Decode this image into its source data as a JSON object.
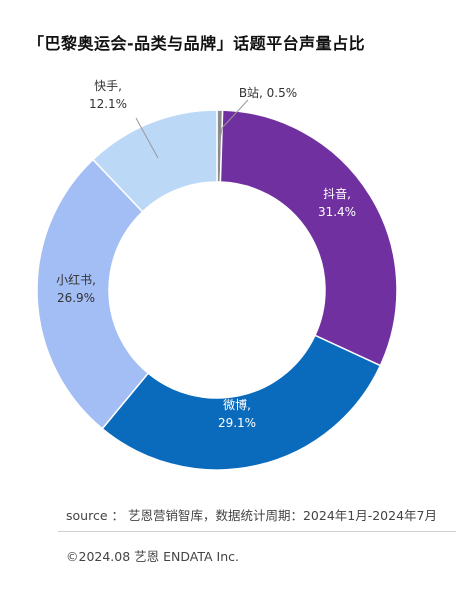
{
  "title": "「巴黎奥运会-品类与品牌」话题平台声量占比",
  "chart_data": {
    "type": "pie",
    "variant": "donut",
    "unit": "%",
    "slices": [
      {
        "name": "B站",
        "value": 0.5,
        "label": "0.5%",
        "color": "#8c8c8c"
      },
      {
        "name": "抖音",
        "value": 31.4,
        "label": "31.4%",
        "color": "#7030a0"
      },
      {
        "name": "微博",
        "value": 29.1,
        "label": "29.1%",
        "color": "#0a6bbd"
      },
      {
        "name": "小红书",
        "value": 26.9,
        "label": "26.9%",
        "color": "#a3bdf5"
      },
      {
        "name": "快手",
        "value": 12.1,
        "label": "12.1%",
        "color": "#bcd8f7"
      }
    ]
  },
  "footer": {
    "source": "source ： 艺恩营销智库，数据统计周期：2024年1月-2024年7月",
    "copyright": "©2024.08  艺恩 ENDATA Inc."
  }
}
